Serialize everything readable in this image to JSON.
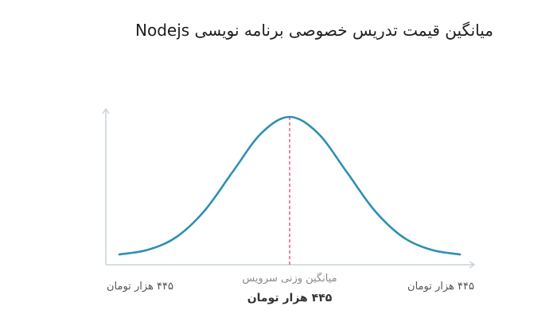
{
  "title": "میانگین قیمت تدریس خصوصی برنامه نویسی Nodejs",
  "colors": {
    "curve": "#2f8fb3",
    "axis": "#c9d3da",
    "mean_line": "#e0446c"
  },
  "chart_data": {
    "type": "line",
    "title": "میانگین قیمت تدریس خصوصی برنامه نویسی Nodejs",
    "xlabel": "",
    "ylabel": "",
    "grid": false,
    "legend": "none",
    "x": [
      -3,
      -2.5,
      -2,
      -1.5,
      -1,
      -0.5,
      0,
      0.5,
      1,
      1.5,
      2,
      2.5,
      3
    ],
    "series": [
      {
        "values": [
          0.011,
          0.044,
          0.135,
          0.325,
          0.607,
          0.882,
          1.0,
          0.882,
          0.607,
          0.325,
          0.135,
          0.044,
          0.011
        ]
      }
    ],
    "xlim": [
      -3,
      3
    ],
    "ylim": [
      0,
      1.1
    ],
    "mean_marker": {
      "x": 0,
      "caption": "میانگین وزنی سرویس",
      "value_label": "۴۴۵ هزار تومان"
    },
    "tick_labels": {
      "left": "۴۴۵ هزار تومان",
      "right": "۴۴۵ هزار تومان"
    }
  }
}
